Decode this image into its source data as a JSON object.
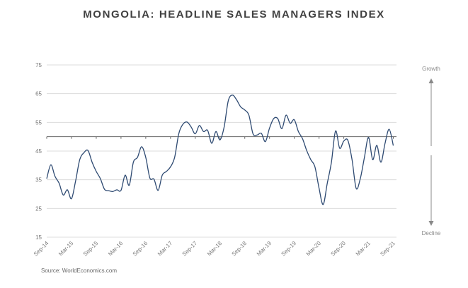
{
  "chart_data": {
    "type": "line",
    "title": "MONGOLIA: HEADLINE SALES MANAGERS INDEX",
    "source": "Source:  WorldEconomics.com",
    "ylim": [
      15,
      75
    ],
    "yticks": [
      15,
      25,
      35,
      45,
      55,
      65,
      75
    ],
    "reference_line": 50,
    "grid": true,
    "xtick_labels": [
      "Sep-14",
      "Mar-15",
      "Sep-15",
      "Mar-16",
      "Sep-16",
      "Mar-17",
      "Sep-17",
      "Mar-18",
      "Sep-18",
      "Mar-19",
      "Sep-19",
      "Mar-20",
      "Sep-20",
      "Mar-21",
      "Sep-21"
    ],
    "side_labels": {
      "top": "Growth",
      "bottom": "Decline"
    },
    "line_color": "#2e4a72",
    "series": [
      {
        "name": "Headline SMI",
        "start": "Sep-14",
        "frequency": "monthly",
        "values": [
          35.4,
          40.2,
          36.2,
          33.8,
          29.7,
          31.5,
          28.4,
          34.6,
          42.0,
          44.4,
          45.2,
          41.1,
          37.9,
          35.4,
          31.7,
          31.2,
          30.9,
          31.5,
          31.3,
          36.6,
          33.1,
          41.1,
          42.8,
          46.5,
          42.8,
          35.6,
          35.2,
          31.3,
          36.6,
          37.9,
          39.5,
          42.8,
          51.0,
          54.3,
          55.1,
          53.4,
          51.0,
          53.9,
          51.8,
          52.2,
          47.7,
          51.8,
          48.9,
          53.4,
          62.5,
          64.5,
          62.9,
          60.4,
          59.3,
          57.5,
          51.0,
          50.6,
          51.2,
          48.3,
          53.0,
          56.3,
          56.3,
          52.8,
          57.5,
          54.7,
          55.9,
          51.8,
          49.3,
          45.2,
          42.0,
          39.5,
          32.1,
          26.4,
          33.8,
          41.1,
          52.0,
          46.0,
          48.5,
          48.7,
          42.0,
          32.0,
          35.4,
          42.8,
          49.8,
          42.0,
          47.0,
          41.1,
          47.7,
          52.6,
          46.9
        ]
      }
    ]
  }
}
